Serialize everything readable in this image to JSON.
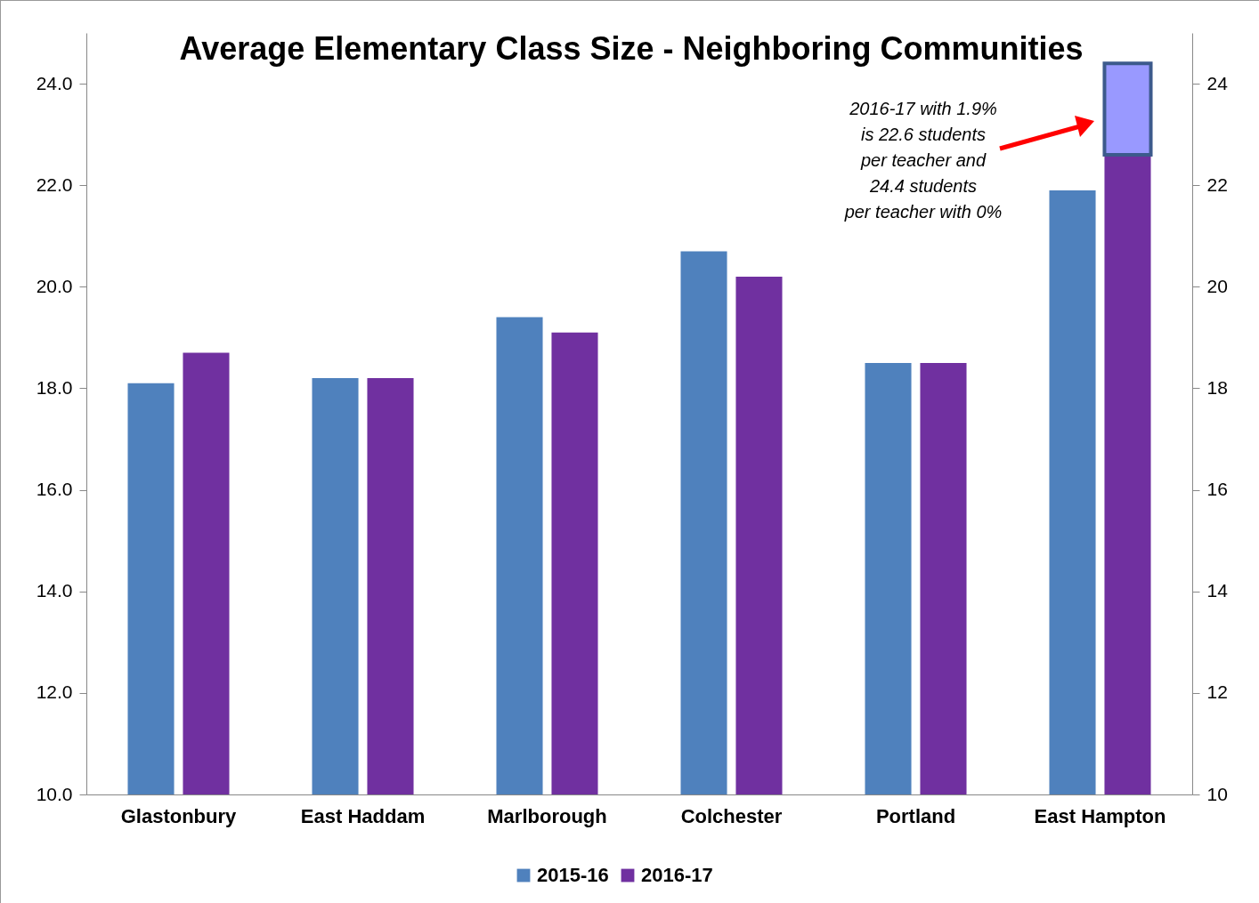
{
  "chart_data": {
    "type": "bar",
    "title": "Average Elementary Class Size - Neighboring Communities",
    "categories": [
      "Glastonbury",
      "East Haddam",
      "Marlborough",
      "Colchester",
      "Portland",
      "East Hampton"
    ],
    "series": [
      {
        "name": "2015-16",
        "color": "#4f81bd",
        "values": [
          18.1,
          18.2,
          19.4,
          20.7,
          18.5,
          21.9
        ]
      },
      {
        "name": "2016-17",
        "color": "#7030a0",
        "values": [
          18.7,
          18.2,
          19.1,
          20.2,
          18.5,
          22.6
        ]
      },
      {
        "color": "#9999ff",
        "values": [
          null,
          null,
          null,
          null,
          null,
          1.8
        ],
        "base": [
          null,
          null,
          null,
          null,
          null,
          22.6
        ]
      }
    ],
    "ylim": [
      10,
      25
    ],
    "yticks": [
      {
        "value": 10,
        "label": "10.0"
      },
      {
        "value": 12,
        "label": "12.0"
      },
      {
        "value": 14,
        "label": "14.0"
      },
      {
        "value": 16,
        "label": "16.0"
      },
      {
        "value": 18,
        "label": "18.0"
      },
      {
        "value": 20,
        "label": "20.0"
      },
      {
        "value": 22,
        "label": "22.0"
      },
      {
        "value": 24,
        "label": "24.0"
      }
    ],
    "y2lim": [
      10,
      25
    ],
    "y2ticks": [
      10,
      12,
      14,
      16,
      18,
      20,
      22,
      24
    ],
    "annotations": [
      "2016-17 with 1.9%\nis 22.6 students\nper teacher and\n24.4 students\nper teacher with 0%"
    ],
    "legend": "bottom",
    "grid": false
  }
}
